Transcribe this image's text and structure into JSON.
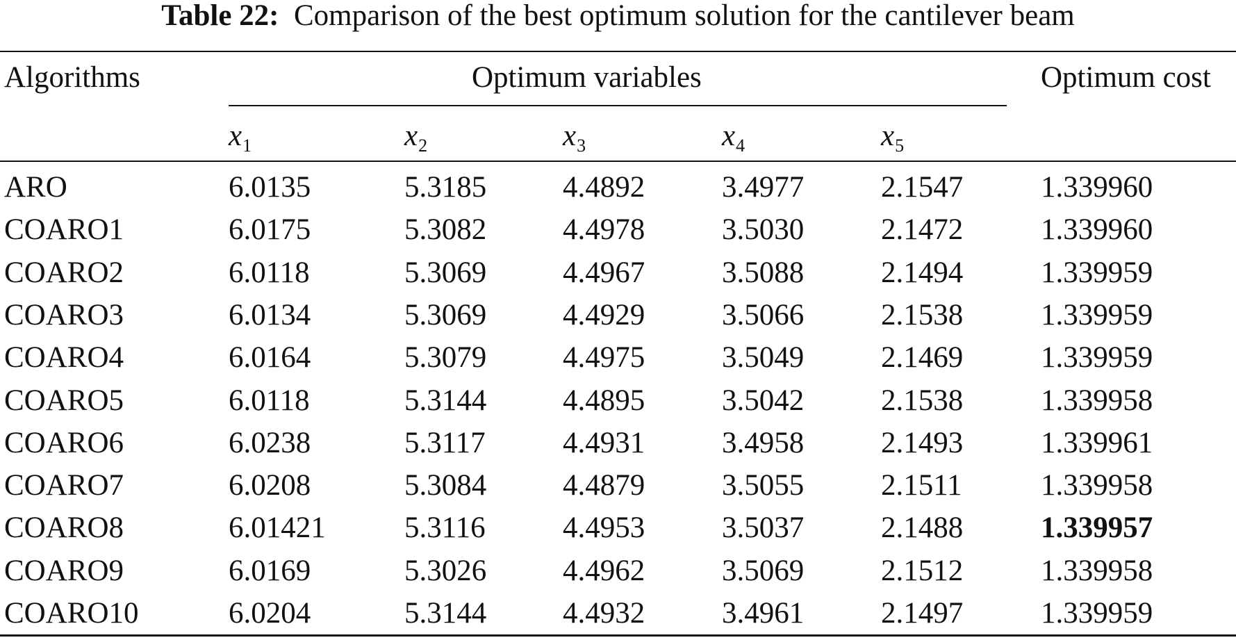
{
  "caption": {
    "label": "Table 22:",
    "text": "Comparison of the best optimum solution for the cantilever beam"
  },
  "header": {
    "algorithms": "Algorithms",
    "optimum_variables": "Optimum variables",
    "optimum_cost": "Optimum cost",
    "variables": [
      {
        "symbol": "x",
        "subscript": "1"
      },
      {
        "symbol": "x",
        "subscript": "2"
      },
      {
        "symbol": "x",
        "subscript": "3"
      },
      {
        "symbol": "x",
        "subscript": "4"
      },
      {
        "symbol": "x",
        "subscript": "5"
      }
    ]
  },
  "rows": [
    {
      "algorithm": "ARO",
      "x1": "6.0135",
      "x2": "5.3185",
      "x3": "4.4892",
      "x4": "3.4977",
      "x5": "2.1547",
      "cost": "1.339960",
      "best": false
    },
    {
      "algorithm": "COARO1",
      "x1": "6.0175",
      "x2": "5.3082",
      "x3": "4.4978",
      "x4": "3.5030",
      "x5": "2.1472",
      "cost": "1.339960",
      "best": false
    },
    {
      "algorithm": "COARO2",
      "x1": "6.0118",
      "x2": "5.3069",
      "x3": "4.4967",
      "x4": "3.5088",
      "x5": "2.1494",
      "cost": "1.339959",
      "best": false
    },
    {
      "algorithm": "COARO3",
      "x1": "6.0134",
      "x2": "5.3069",
      "x3": "4.4929",
      "x4": "3.5066",
      "x5": "2.1538",
      "cost": "1.339959",
      "best": false
    },
    {
      "algorithm": "COARO4",
      "x1": "6.0164",
      "x2": "5.3079",
      "x3": "4.4975",
      "x4": "3.5049",
      "x5": "2.1469",
      "cost": "1.339959",
      "best": false
    },
    {
      "algorithm": "COARO5",
      "x1": "6.0118",
      "x2": "5.3144",
      "x3": "4.4895",
      "x4": "3.5042",
      "x5": "2.1538",
      "cost": "1.339958",
      "best": false
    },
    {
      "algorithm": "COARO6",
      "x1": "6.0238",
      "x2": "5.3117",
      "x3": "4.4931",
      "x4": "3.4958",
      "x5": "2.1493",
      "cost": "1.339961",
      "best": false
    },
    {
      "algorithm": "COARO7",
      "x1": "6.0208",
      "x2": "5.3084",
      "x3": "4.4879",
      "x4": "3.5055",
      "x5": "2.1511",
      "cost": "1.339958",
      "best": false
    },
    {
      "algorithm": "COARO8",
      "x1": "6.01421",
      "x2": "5.3116",
      "x3": "4.4953",
      "x4": "3.5037",
      "x5": "2.1488",
      "cost": "1.339957",
      "best": true
    },
    {
      "algorithm": "COARO9",
      "x1": "6.0169",
      "x2": "5.3026",
      "x3": "4.4962",
      "x4": "3.5069",
      "x5": "2.1512",
      "cost": "1.339958",
      "best": false
    },
    {
      "algorithm": "COARO10",
      "x1": "6.0204",
      "x2": "5.3144",
      "x3": "4.4932",
      "x4": "3.4961",
      "x5": "2.1497",
      "cost": "1.339959",
      "best": false
    }
  ]
}
